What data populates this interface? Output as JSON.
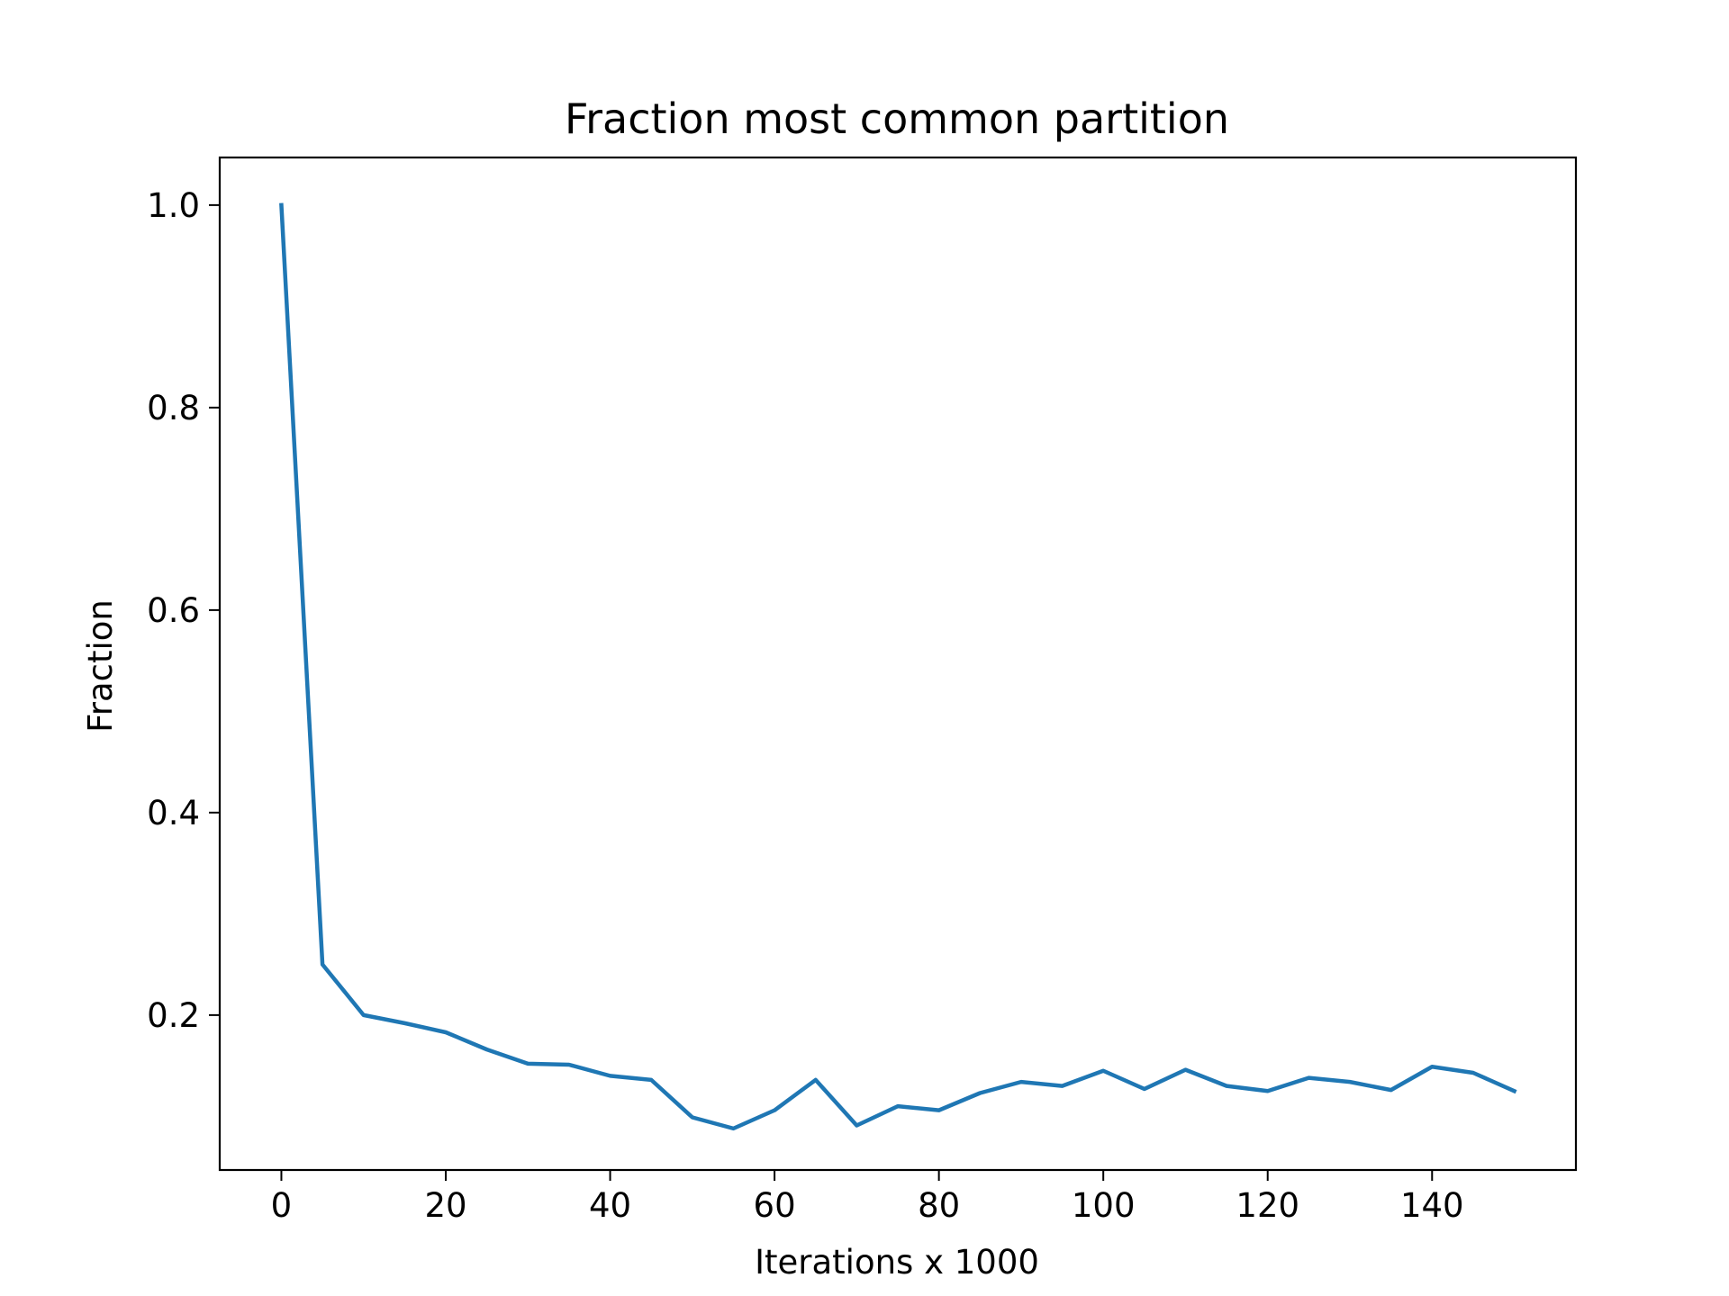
{
  "chart_data": {
    "type": "line",
    "title": "Fraction most common partition",
    "xlabel": "Iterations x 1000",
    "ylabel": "Fraction",
    "xlim": [
      -7.5,
      157.5
    ],
    "ylim": [
      0.047,
      1.047
    ],
    "xticks": [
      0,
      20,
      40,
      60,
      80,
      100,
      120,
      140
    ],
    "xtick_labels": [
      "0",
      "20",
      "40",
      "60",
      "80",
      "100",
      "120",
      "140"
    ],
    "yticks": [
      0.2,
      0.4,
      0.6,
      0.8,
      1.0
    ],
    "ytick_labels": [
      "0.2",
      "0.4",
      "0.6",
      "0.8",
      "1.0"
    ],
    "grid": false,
    "series": [
      {
        "color": "#1f77b4",
        "x": [
          0,
          5,
          10,
          15,
          20,
          25,
          30,
          35,
          40,
          45,
          50,
          55,
          60,
          65,
          70,
          75,
          80,
          85,
          90,
          95,
          100,
          105,
          110,
          115,
          120,
          125,
          130,
          135,
          140,
          145,
          150
        ],
        "y": [
          1.0,
          0.25,
          0.2,
          0.192,
          0.183,
          0.166,
          0.152,
          0.151,
          0.14,
          0.136,
          0.099,
          0.088,
          0.106,
          0.136,
          0.091,
          0.11,
          0.106,
          0.123,
          0.134,
          0.13,
          0.145,
          0.127,
          0.146,
          0.13,
          0.125,
          0.138,
          0.134,
          0.126,
          0.149,
          0.143,
          0.125
        ]
      }
    ]
  }
}
